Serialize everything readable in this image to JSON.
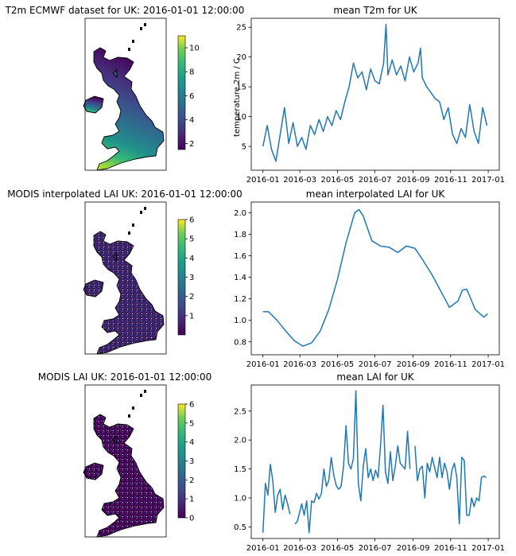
{
  "maps": [
    {
      "title": "T2m ECMWF dataset for UK: 2016-01-01 12:00:00",
      "colorbar_ticks": [
        "2",
        "4",
        "6",
        "8",
        "10"
      ],
      "colorbar_range": [
        1.5,
        11
      ]
    },
    {
      "title": "MODIS interpolated LAI UK: 2016-01-01 12:00:00",
      "colorbar_ticks": [
        "1",
        "2",
        "3",
        "4",
        "5",
        "6"
      ],
      "colorbar_range": [
        0,
        6
      ]
    },
    {
      "title": "MODIS LAI UK: 2016-01-01 12:00:00",
      "colorbar_ticks": [
        "0",
        "1",
        "2",
        "3",
        "4",
        "5",
        "6"
      ],
      "colorbar_range": [
        0,
        6
      ]
    }
  ],
  "x_tick_labels": [
    "2016-01",
    "2016-03",
    "2016-05",
    "2016-07",
    "2016-09",
    "2016-11",
    "2017-01"
  ],
  "chart_data": [
    {
      "type": "line",
      "title": "mean T2m for UK",
      "xlabel": "",
      "ylabel": "temperature 2m / C",
      "xlim": [
        "2015-12-13",
        "2017-01-19"
      ],
      "ylim": [
        1,
        26.5
      ],
      "yticks": [
        "5",
        "10",
        "15",
        "20",
        "25"
      ],
      "grid": false,
      "x": [
        "2016-01-01",
        "2016-01-08",
        "2016-01-15",
        "2016-01-22",
        "2016-01-29",
        "2016-02-05",
        "2016-02-12",
        "2016-02-19",
        "2016-02-26",
        "2016-03-04",
        "2016-03-11",
        "2016-03-18",
        "2016-03-25",
        "2016-04-01",
        "2016-04-08",
        "2016-04-15",
        "2016-04-22",
        "2016-04-29",
        "2016-05-06",
        "2016-05-13",
        "2016-05-20",
        "2016-05-27",
        "2016-06-03",
        "2016-06-10",
        "2016-06-17",
        "2016-06-24",
        "2016-07-01",
        "2016-07-08",
        "2016-07-15",
        "2016-07-19",
        "2016-07-22",
        "2016-07-29",
        "2016-08-05",
        "2016-08-12",
        "2016-08-19",
        "2016-08-26",
        "2016-09-02",
        "2016-09-09",
        "2016-09-13",
        "2016-09-16",
        "2016-09-23",
        "2016-09-30",
        "2016-10-07",
        "2016-10-14",
        "2016-10-21",
        "2016-10-28",
        "2016-11-04",
        "2016-11-11",
        "2016-11-18",
        "2016-11-25",
        "2016-12-02",
        "2016-12-09",
        "2016-12-16",
        "2016-12-23",
        "2016-12-30"
      ],
      "values": [
        5.0,
        8.5,
        4.5,
        2.5,
        7.0,
        11.5,
        5.5,
        9.0,
        5.0,
        6.5,
        4.5,
        8.5,
        7.0,
        9.5,
        7.5,
        10.0,
        8.5,
        11.0,
        9.5,
        12.5,
        15.0,
        19.0,
        16.5,
        17.5,
        14.5,
        18.0,
        16.0,
        15.5,
        19.0,
        25.5,
        17.0,
        19.5,
        17.0,
        18.5,
        16.0,
        20.0,
        17.5,
        19.0,
        21.5,
        16.5,
        15.0,
        14.0,
        13.0,
        12.5,
        9.5,
        11.5,
        7.0,
        5.5,
        8.0,
        6.5,
        12.0,
        7.5,
        5.5,
        11.5,
        8.5
      ]
    },
    {
      "type": "line",
      "title": "mean interpolated LAI for UK",
      "xlabel": "",
      "ylabel": "",
      "xlim": [
        "2015-12-13",
        "2017-01-19"
      ],
      "ylim": [
        0.68,
        2.1
      ],
      "yticks": [
        "0.8",
        "1.0",
        "1.2",
        "1.4",
        "1.6",
        "1.8",
        "2.0"
      ],
      "grid": false,
      "x": [
        "2016-01-01",
        "2016-01-10",
        "2016-01-24",
        "2016-02-07",
        "2016-02-21",
        "2016-03-06",
        "2016-03-20",
        "2016-04-03",
        "2016-04-17",
        "2016-05-01",
        "2016-05-15",
        "2016-05-29",
        "2016-06-05",
        "2016-06-12",
        "2016-06-26",
        "2016-07-10",
        "2016-07-24",
        "2016-08-07",
        "2016-08-21",
        "2016-09-04",
        "2016-09-18",
        "2016-10-02",
        "2016-10-16",
        "2016-10-30",
        "2016-11-13",
        "2016-11-20",
        "2016-11-27",
        "2016-12-11",
        "2016-12-25",
        "2016-12-31"
      ],
      "values": [
        1.08,
        1.08,
        1.0,
        0.9,
        0.81,
        0.76,
        0.79,
        0.9,
        1.1,
        1.38,
        1.72,
        2.0,
        2.03,
        1.97,
        1.74,
        1.69,
        1.68,
        1.63,
        1.69,
        1.67,
        1.55,
        1.42,
        1.27,
        1.12,
        1.18,
        1.28,
        1.29,
        1.1,
        1.03,
        1.06
      ]
    },
    {
      "type": "line",
      "title": "mean  LAI for UK",
      "xlabel": "",
      "ylabel": "",
      "xlim": [
        "2015-12-13",
        "2017-01-19"
      ],
      "ylim": [
        0.3,
        2.95
      ],
      "yticks": [
        "0.5",
        "1.0",
        "1.5",
        "2.0",
        "2.5"
      ],
      "grid": false,
      "x": [
        "2016-01-01",
        "2016-01-05",
        "2016-01-09",
        "2016-01-13",
        "2016-01-17",
        "2016-01-21",
        "2016-01-25",
        "2016-01-29",
        "2016-02-02",
        "2016-02-06",
        "2016-02-10",
        "2016-02-14",
        "2016-02-18",
        "2016-02-22",
        "2016-02-26",
        "2016-03-04",
        "2016-03-08",
        "2016-03-12",
        "2016-03-16",
        "2016-03-20",
        "2016-03-24",
        "2016-03-28",
        "2016-04-01",
        "2016-04-05",
        "2016-04-09",
        "2016-04-13",
        "2016-04-17",
        "2016-04-21",
        "2016-04-25",
        "2016-04-29",
        "2016-05-03",
        "2016-05-07",
        "2016-05-11",
        "2016-05-15",
        "2016-05-19",
        "2016-05-23",
        "2016-05-27",
        "2016-05-31",
        "2016-06-04",
        "2016-06-08",
        "2016-06-12",
        "2016-06-16",
        "2016-06-20",
        "2016-06-24",
        "2016-06-28",
        "2016-07-02",
        "2016-07-06",
        "2016-07-10",
        "2016-07-14",
        "2016-07-18",
        "2016-07-22",
        "2016-07-26",
        "2016-07-30",
        "2016-08-03",
        "2016-08-07",
        "2016-08-11",
        "2016-08-15",
        "2016-08-19",
        "2016-08-23",
        "2016-08-27",
        "2016-08-31",
        "2016-09-04",
        "2016-09-08",
        "2016-09-12",
        "2016-09-16",
        "2016-09-20",
        "2016-09-24",
        "2016-09-28",
        "2016-10-02",
        "2016-10-06",
        "2016-10-10",
        "2016-10-14",
        "2016-10-18",
        "2016-10-22",
        "2016-10-26",
        "2016-10-30",
        "2016-11-03",
        "2016-11-07",
        "2016-11-11",
        "2016-11-15",
        "2016-11-19",
        "2016-11-23",
        "2016-11-27",
        "2016-12-01",
        "2016-12-05",
        "2016-12-09",
        "2016-12-13",
        "2016-12-17",
        "2016-12-21",
        "2016-12-25",
        "2016-12-29"
      ],
      "values": [
        0.4,
        1.25,
        1.05,
        1.58,
        1.3,
        0.75,
        1.05,
        1.15,
        0.8,
        1.05,
        0.9,
        0.72,
        null,
        0.55,
        0.6,
        0.9,
        0.7,
        0.95,
        0.4,
        0.95,
        0.92,
        1.08,
        0.98,
        1.08,
        1.5,
        1.2,
        1.3,
        1.7,
        1.4,
        1.22,
        1.15,
        1.2,
        1.55,
        2.25,
        1.6,
        1.5,
        1.68,
        2.85,
        1.25,
        0.95,
        1.55,
        1.85,
        1.35,
        1.5,
        1.3,
        1.48,
        1.35,
        1.9,
        2.6,
        1.45,
        1.25,
        1.8,
        1.3,
        1.55,
        1.9,
        1.6,
        1.55,
        1.5,
        2.15,
        1.5,
        null,
        1.9,
        1.3,
        1.5,
        1.55,
        1.0,
        1.6,
        1.45,
        1.7,
        1.52,
        1.35,
        1.7,
        1.35,
        1.6,
        1.45,
        1.15,
        1.48,
        1.6,
        1.35,
        0.55,
        1.7,
        1.65,
        0.7,
        0.7,
        1.0,
        0.85,
        1.0,
        0.95,
        1.35,
        1.38,
        1.35
      ]
    }
  ],
  "colors": {
    "line": "#1f77b4",
    "map_south": "#b5de2b",
    "map_mid": "#2b758e",
    "map_north": "#3b2a6f"
  }
}
